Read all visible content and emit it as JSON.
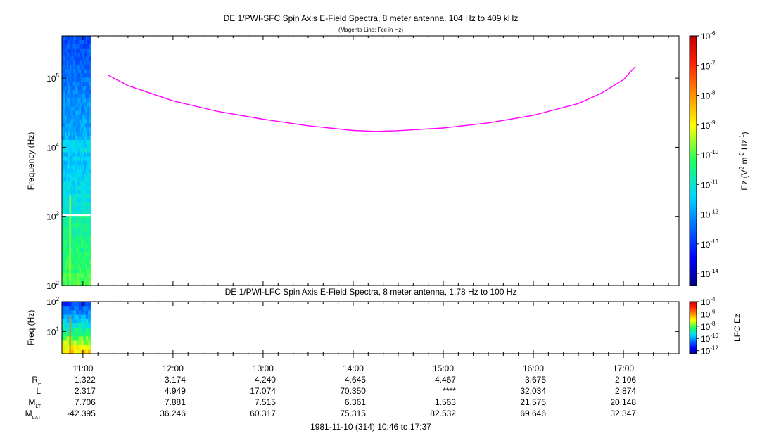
{
  "chart_data": [
    {
      "type": "heatmap",
      "title": "DE 1/PWI-SFC  Spin Axis E-Field Spectra, 8 meter antenna, 104 Hz to 409 kHz",
      "subtitle": "(Magenta Line: Fce in Hz)",
      "ylabel": "Frequency (Hz)",
      "yscale": "log",
      "ylim": [
        100,
        409000
      ],
      "yticks": [
        {
          "v": 100,
          "m": "10",
          "e": "2"
        },
        {
          "v": 1000,
          "m": "10",
          "e": "3"
        },
        {
          "v": 10000,
          "m": "10",
          "e": "4"
        },
        {
          "v": 100000,
          "m": "10",
          "e": "5"
        }
      ],
      "colorbar": {
        "label_main": "Ez (V",
        "label_sup1": "2",
        "label_mid": " m",
        "label_sup2": "-2",
        "label_mid2": " Hz",
        "label_sup3": "-1",
        "label_end": ")",
        "range_exp": [
          -14.4,
          -6
        ],
        "ticks": [
          {
            "v": -6,
            "m": "10",
            "e": "-6"
          },
          {
            "v": -7,
            "m": "10",
            "e": "-7"
          },
          {
            "v": -8,
            "m": "10",
            "e": "-8"
          },
          {
            "v": -9,
            "m": "10",
            "e": "-9"
          },
          {
            "v": -10,
            "m": "10",
            "e": "-10"
          },
          {
            "v": -11,
            "m": "10",
            "e": "-11"
          },
          {
            "v": -12,
            "m": "10",
            "e": "-12"
          },
          {
            "v": -13,
            "m": "10",
            "e": "-13"
          },
          {
            "v": -14,
            "m": "10",
            "e": "-14"
          }
        ]
      },
      "data_end_time": "11:05",
      "fce_line": {
        "name": "Fce",
        "color": "#ff00ff",
        "points": [
          [
            "11:17",
            110000
          ],
          [
            "11:30",
            78000
          ],
          [
            "12:00",
            47000
          ],
          [
            "12:30",
            33000
          ],
          [
            "13:00",
            25500
          ],
          [
            "13:30",
            20500
          ],
          [
            "14:00",
            17500
          ],
          [
            "14:15",
            17000
          ],
          [
            "14:30",
            17400
          ],
          [
            "15:00",
            19000
          ],
          [
            "15:30",
            22500
          ],
          [
            "16:00",
            29000
          ],
          [
            "16:30",
            43000
          ],
          [
            "16:45",
            60000
          ],
          [
            "17:00",
            95000
          ],
          [
            "17:08",
            148000
          ]
        ]
      }
    },
    {
      "type": "heatmap",
      "title": "DE 1/PWI-LFC  Spin Axis E-Field Spectra, 8 meter antenna, 1.78 Hz to 100 Hz",
      "ylabel": "Freq (Hz)",
      "yscale": "log",
      "ylim": [
        1.78,
        100
      ],
      "yticks": [
        {
          "v": 10,
          "m": "10",
          "e": "1"
        },
        {
          "v": 100,
          "m": "10",
          "e": "2"
        }
      ],
      "colorbar": {
        "label_main": "LFC Ez",
        "range_exp": [
          -12.5,
          -4
        ],
        "ticks": [
          {
            "v": -4,
            "m": "10",
            "e": "-4"
          },
          {
            "v": -6,
            "m": "10",
            "e": "-6"
          },
          {
            "v": -8,
            "m": "10",
            "e": "-8"
          },
          {
            "v": -10,
            "m": "10",
            "e": "-10"
          },
          {
            "v": -12,
            "m": "10",
            "e": "-12"
          }
        ]
      },
      "data_end_time": "11:05"
    }
  ],
  "x_axis": {
    "start_time": "10:46",
    "end_time": "17:37",
    "ticks": [
      "11:00",
      "12:00",
      "13:00",
      "14:00",
      "15:00",
      "16:00",
      "17:00"
    ]
  },
  "ephemeris": {
    "rows": [
      {
        "label": "R",
        "sub": "e",
        "values": [
          "1.322",
          "3.174",
          "4.240",
          "4.645",
          "4.467",
          "3.675",
          "2.106"
        ]
      },
      {
        "label": "L",
        "sub": "",
        "values": [
          "2.317",
          "4.949",
          "17.074",
          "70.350",
          "****",
          "32.034",
          "2.874"
        ]
      },
      {
        "label": "M",
        "sub": "LT",
        "values": [
          "7.706",
          "7.881",
          "7.515",
          "6.361",
          "1.563",
          "21.575",
          "20.148"
        ]
      },
      {
        "label": "M",
        "sub": "LAT",
        "values": [
          "-42.395",
          "36.246",
          "60.317",
          "75.315",
          "82.532",
          "69.646",
          "32.347"
        ]
      }
    ]
  },
  "footer": "1981-11-10 (314) 10:46 to 17:37"
}
